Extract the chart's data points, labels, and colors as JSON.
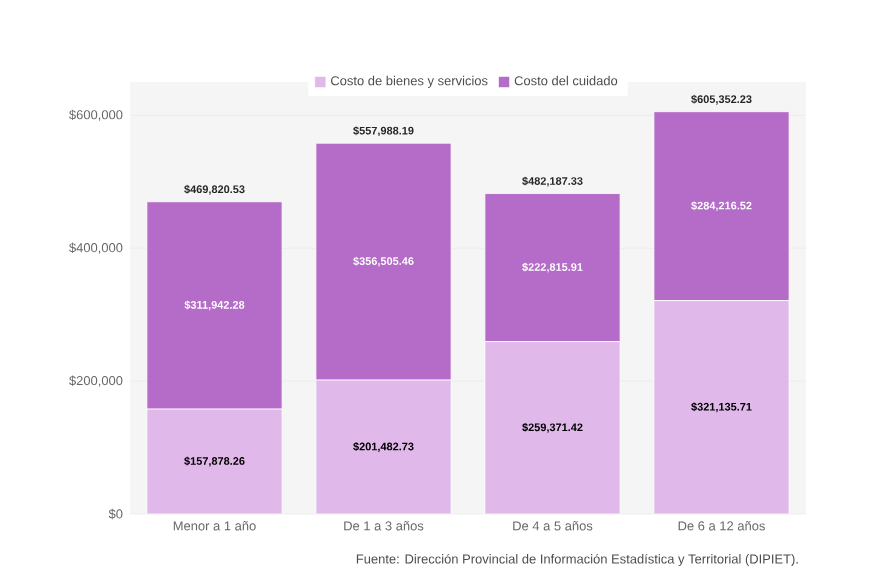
{
  "chart_data": {
    "type": "bar",
    "stacked": true,
    "categories": [
      "Menor a 1 año",
      "De 1 a 3 años",
      "De 4 a 5 años",
      "De 6 a 12 años"
    ],
    "series": [
      {
        "name": "Costo de bienes y servicios",
        "color": "#e1b8ea",
        "values": [
          157878.26,
          201482.73,
          259371.42,
          321135.71
        ],
        "value_labels": [
          "$157,878.26",
          "$201,482.73",
          "$259,371.42",
          "$321,135.71"
        ]
      },
      {
        "name": "Costo del cuidado",
        "color": "#b56cc8",
        "values": [
          311942.28,
          356505.46,
          222815.91,
          284216.52
        ],
        "value_labels": [
          "$311,942.28",
          "$356,505.46",
          "$222,815.91",
          "$284,216.52"
        ]
      }
    ],
    "totals": [
      "$469,820.53",
      "$557,988.19",
      "$482,187.33",
      "$605,352.23"
    ],
    "ylim": [
      0,
      650000
    ],
    "yticks": [
      {
        "value": 0,
        "label": "$0"
      },
      {
        "value": 200000,
        "label": "$200,000"
      },
      {
        "value": 400000,
        "label": "$400,000"
      },
      {
        "value": 600000,
        "label": "$600,000"
      }
    ],
    "grid": "y",
    "legend": "top",
    "annotations": [
      "Fuente: Dirección Provincial de Información Estadística y Territorial (DIPIET)."
    ]
  }
}
